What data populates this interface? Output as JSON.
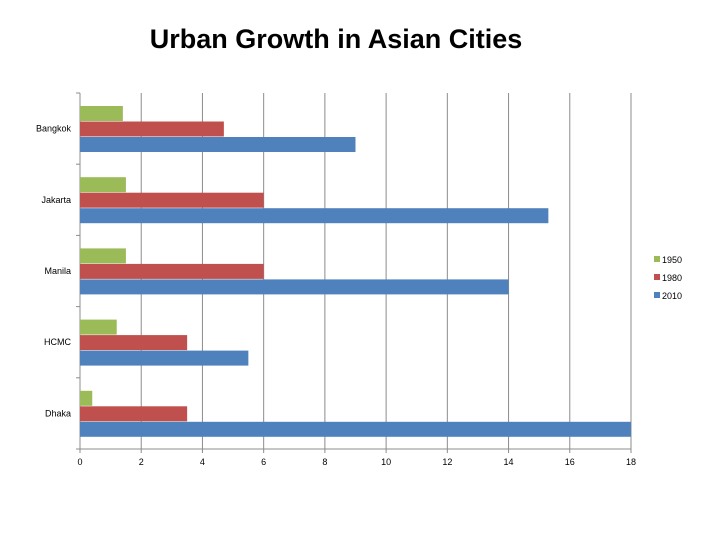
{
  "chart_data": {
    "type": "bar",
    "orientation": "horizontal",
    "title": "Urban Growth in Asian Cities",
    "categories": [
      "Bangkok",
      "Jakarta",
      "Manila",
      "HCMC",
      "Dhaka"
    ],
    "series": [
      {
        "name": "1950",
        "color": "#9bbb59",
        "values": [
          1.4,
          1.5,
          1.5,
          1.2,
          0.4
        ]
      },
      {
        "name": "1980",
        "color": "#c0504d",
        "values": [
          4.7,
          6.0,
          6.0,
          3.5,
          3.5
        ]
      },
      {
        "name": "2010",
        "color": "#4f81bd",
        "values": [
          9.0,
          15.3,
          14.0,
          5.5,
          18.0
        ]
      }
    ],
    "xlim": [
      0,
      18
    ],
    "xticks": [
      0,
      2,
      4,
      6,
      8,
      10,
      12,
      14,
      16,
      18
    ],
    "xlabel": "",
    "ylabel": "",
    "grid": "vertical",
    "legend": "right"
  }
}
